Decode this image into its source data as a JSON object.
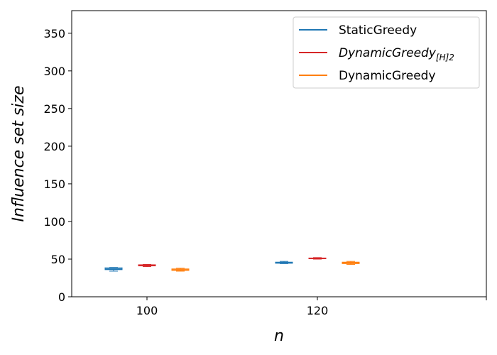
{
  "chart_data": {
    "type": "box",
    "xlabel": "n",
    "ylabel": "Influence set size",
    "categories": [
      "100",
      "120"
    ],
    "ylim": [
      0,
      380
    ],
    "yticks": [
      0,
      50,
      100,
      150,
      200,
      250,
      300,
      350
    ],
    "legend_position": "top-right",
    "grid": false,
    "series": [
      {
        "name": "StaticGreedy",
        "color": "#1f77b4",
        "boxes": [
          {
            "category": "100",
            "min": 34,
            "q1": 36,
            "median": 37,
            "q3": 38.5,
            "max": 39
          },
          {
            "category": "120",
            "min": 44,
            "q1": 44.5,
            "median": 45,
            "q3": 46,
            "max": 47
          }
        ]
      },
      {
        "name": "DynamicGreedy",
        "name_subscript": "[H]2",
        "italic": true,
        "color": "#d62728",
        "boxes": [
          {
            "category": "100",
            "min": 40,
            "q1": 41,
            "median": 42,
            "q3": 42.5,
            "max": 43
          },
          {
            "category": "120",
            "min": 50,
            "q1": 50.5,
            "median": 51,
            "q3": 51.5,
            "max": 52
          }
        ]
      },
      {
        "name": "DynamicGreedy",
        "color": "#ff7f0e",
        "boxes": [
          {
            "category": "100",
            "min": 34,
            "q1": 35,
            "median": 36,
            "q3": 37,
            "max": 38
          },
          {
            "category": "120",
            "min": 43,
            "q1": 44,
            "median": 45,
            "q3": 46,
            "max": 47
          }
        ]
      }
    ]
  }
}
